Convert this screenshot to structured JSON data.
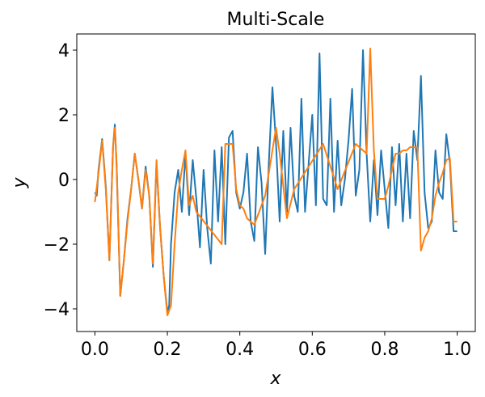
{
  "chart_data": {
    "type": "line",
    "title": "Multi-Scale",
    "xlabel": "x",
    "ylabel": "y",
    "xlim": [
      -0.05,
      1.05
    ],
    "ylim": [
      -4.7,
      4.5
    ],
    "xticks": [
      0.0,
      0.2,
      0.4,
      0.6,
      0.8,
      1.0
    ],
    "xtick_labels": [
      "0.0",
      "0.2",
      "0.4",
      "0.6",
      "0.8",
      "1.0"
    ],
    "yticks": [
      -4,
      -2,
      0,
      2,
      4
    ],
    "ytick_labels": [
      "−4",
      "−2",
      "0",
      "2",
      "4"
    ],
    "grid": false,
    "series": [
      {
        "color": "#1f77b4",
        "x": [
          0.0,
          0.005,
          0.01,
          0.02,
          0.03,
          0.04,
          0.05,
          0.055,
          0.06,
          0.07,
          0.08,
          0.09,
          0.1,
          0.11,
          0.12,
          0.13,
          0.14,
          0.15,
          0.16,
          0.17,
          0.18,
          0.19,
          0.2,
          0.205,
          0.21,
          0.22,
          0.23,
          0.24,
          0.25,
          0.26,
          0.27,
          0.28,
          0.29,
          0.3,
          0.31,
          0.32,
          0.33,
          0.34,
          0.35,
          0.36,
          0.37,
          0.38,
          0.39,
          0.4,
          0.41,
          0.42,
          0.43,
          0.44,
          0.45,
          0.46,
          0.47,
          0.48,
          0.49,
          0.5,
          0.51,
          0.52,
          0.53,
          0.54,
          0.55,
          0.56,
          0.57,
          0.58,
          0.59,
          0.6,
          0.61,
          0.62,
          0.63,
          0.64,
          0.65,
          0.66,
          0.67,
          0.68,
          0.69,
          0.7,
          0.71,
          0.72,
          0.73,
          0.74,
          0.75,
          0.76,
          0.77,
          0.78,
          0.79,
          0.8,
          0.81,
          0.82,
          0.83,
          0.84,
          0.85,
          0.86,
          0.87,
          0.88,
          0.89,
          0.9,
          0.91,
          0.92,
          0.93,
          0.94,
          0.95,
          0.96,
          0.97,
          0.98,
          0.99,
          1.0
        ],
        "y": [
          -0.4,
          -0.5,
          0.3,
          1.25,
          -0.2,
          -2.5,
          1.0,
          1.7,
          0.4,
          -3.6,
          -2.5,
          -1.2,
          -0.3,
          0.8,
          0.0,
          -0.9,
          0.4,
          -0.5,
          -2.7,
          0.5,
          -1.5,
          -3.0,
          -4.1,
          -3.9,
          -2.0,
          -0.4,
          0.3,
          -1.0,
          0.8,
          -1.1,
          0.6,
          -0.6,
          -2.1,
          0.3,
          -1.5,
          -2.6,
          0.9,
          -1.3,
          1.0,
          -2.0,
          1.3,
          1.5,
          -0.4,
          -0.9,
          -0.4,
          0.8,
          -1.3,
          -1.9,
          1.0,
          -0.1,
          -2.3,
          0.5,
          2.85,
          1.1,
          -1.3,
          1.5,
          -1.0,
          1.6,
          -0.5,
          -1.0,
          2.5,
          -1.0,
          0.5,
          2.0,
          -0.8,
          3.9,
          -0.6,
          -0.8,
          2.5,
          -1.0,
          1.2,
          -0.8,
          0.0,
          1.2,
          2.8,
          -0.5,
          0.3,
          4.0,
          0.8,
          -1.3,
          0.6,
          -1.1,
          0.9,
          -0.3,
          -1.5,
          1.0,
          -0.8,
          1.1,
          -1.3,
          0.8,
          -1.2,
          1.5,
          0.6,
          3.2,
          -0.4,
          -1.5,
          -1.3,
          0.9,
          -0.4,
          -0.6,
          1.4,
          0.5,
          -1.6,
          -1.6
        ]
      },
      {
        "color": "#ff7f0e",
        "x": [
          0.0,
          0.01,
          0.02,
          0.03,
          0.04,
          0.05,
          0.055,
          0.06,
          0.07,
          0.08,
          0.09,
          0.1,
          0.11,
          0.12,
          0.13,
          0.14,
          0.15,
          0.16,
          0.17,
          0.18,
          0.19,
          0.2,
          0.21,
          0.22,
          0.23,
          0.24,
          0.25,
          0.26,
          0.27,
          0.28,
          0.35,
          0.36,
          0.37,
          0.38,
          0.39,
          0.4,
          0.41,
          0.42,
          0.44,
          0.47,
          0.5,
          0.51,
          0.53,
          0.55,
          0.63,
          0.67,
          0.72,
          0.75,
          0.76,
          0.77,
          0.78,
          0.79,
          0.8,
          0.81,
          0.82,
          0.83,
          0.84,
          0.85,
          0.86,
          0.87,
          0.88,
          0.89,
          0.9,
          0.91,
          0.92,
          0.93,
          0.94,
          0.95,
          0.96,
          0.97,
          0.98,
          0.99,
          1.0
        ],
        "y": [
          -0.7,
          0.2,
          1.2,
          -0.3,
          -2.5,
          1.0,
          1.6,
          0.5,
          -3.6,
          -2.5,
          -1.3,
          -0.3,
          0.8,
          0.0,
          -0.9,
          0.3,
          -0.5,
          -2.6,
          0.6,
          -1.5,
          -3.0,
          -4.2,
          -3.9,
          -2.0,
          -0.4,
          0.3,
          0.9,
          -0.8,
          -0.5,
          -1.0,
          -2.0,
          1.1,
          1.1,
          1.1,
          -0.3,
          -0.8,
          -0.9,
          -1.2,
          -1.4,
          -0.5,
          1.6,
          0.8,
          -1.2,
          -0.3,
          1.1,
          -0.3,
          1.1,
          0.8,
          4.05,
          0.9,
          -0.6,
          -0.6,
          -0.6,
          -0.2,
          0.3,
          0.8,
          0.8,
          0.9,
          0.9,
          1.0,
          1.0,
          1.0,
          -2.2,
          -1.8,
          -1.6,
          -1.2,
          -0.5,
          -0.1,
          0.2,
          0.6,
          0.65,
          -1.3,
          -1.3
        ]
      }
    ]
  }
}
